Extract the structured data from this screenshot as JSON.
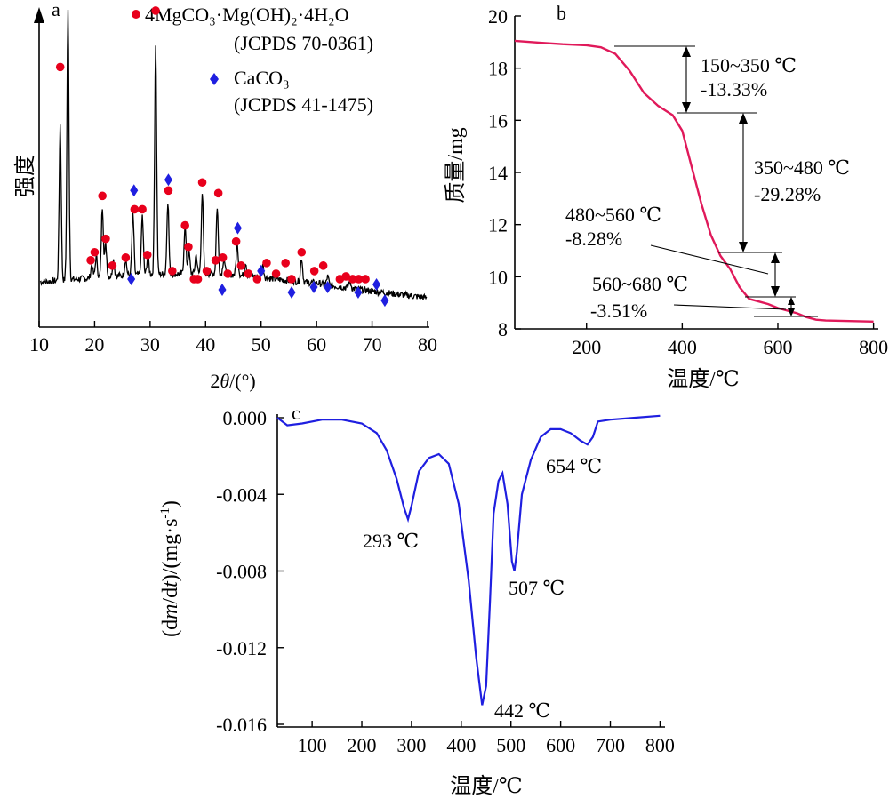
{
  "chart_data": [
    {
      "panel": "a",
      "type": "line",
      "xlabel_prefix": "2",
      "xlabel_var": "θ",
      "xlabel_suffix": "/(°)",
      "ylabel": "强度",
      "xlim": [
        10,
        80
      ],
      "xticks": [
        10,
        20,
        30,
        40,
        50,
        60,
        70,
        80
      ],
      "legend": [
        {
          "marker": "circle",
          "color": "#e8001c",
          "line1": "4MgCO₃·Mg(OH)₂·4H₂O",
          "line2": "(JCPDS 70-0361)"
        },
        {
          "marker": "diamond",
          "color": "#1f1fe0",
          "line1": "CaCO₃",
          "line2": "(JCPDS 41-1475)"
        }
      ],
      "peaks": [
        {
          "x": 13.8,
          "h": 0.58
        },
        {
          "x": 15.2,
          "h": 1.0
        },
        {
          "x": 19.5,
          "h": 0.05
        },
        {
          "x": 20.3,
          "h": 0.08
        },
        {
          "x": 21.4,
          "h": 0.26
        },
        {
          "x": 22.0,
          "h": 0.12
        },
        {
          "x": 23.4,
          "h": 0.06
        },
        {
          "x": 25.6,
          "h": 0.06
        },
        {
          "x": 26.9,
          "h": 0.23
        },
        {
          "x": 28.6,
          "h": 0.22
        },
        {
          "x": 29.6,
          "h": 0.07
        },
        {
          "x": 31.0,
          "h": 0.86
        },
        {
          "x": 33.2,
          "h": 0.27
        },
        {
          "x": 36.3,
          "h": 0.18
        },
        {
          "x": 37.0,
          "h": 0.08
        },
        {
          "x": 38.3,
          "h": 0.07
        },
        {
          "x": 39.4,
          "h": 0.3
        },
        {
          "x": 42.1,
          "h": 0.25
        },
        {
          "x": 43.3,
          "h": 0.06
        },
        {
          "x": 45.7,
          "h": 0.12
        },
        {
          "x": 47.2,
          "h": 0.05
        },
        {
          "x": 50.3,
          "h": 0.05
        },
        {
          "x": 57.3,
          "h": 0.09
        },
        {
          "x": 62.0,
          "h": 0.03
        },
        {
          "x": 66.0,
          "h": 0.03
        }
      ],
      "markers_mg": [
        [
          13.8,
          0.79
        ],
        [
          15.2,
          1.2
        ],
        [
          19.3,
          0.07
        ],
        [
          20.0,
          0.1
        ],
        [
          21.4,
          0.31
        ],
        [
          22.0,
          0.15
        ],
        [
          23.2,
          0.05
        ],
        [
          25.6,
          0.08
        ],
        [
          27.2,
          0.26
        ],
        [
          28.6,
          0.26
        ],
        [
          29.5,
          0.09
        ],
        [
          31.0,
          1.0
        ],
        [
          33.3,
          0.33
        ],
        [
          34.0,
          0.03
        ],
        [
          36.3,
          0.2
        ],
        [
          36.9,
          0.12
        ],
        [
          37.9,
          0.0
        ],
        [
          38.6,
          0.0
        ],
        [
          39.4,
          0.36
        ],
        [
          40.2,
          0.03
        ],
        [
          41.8,
          0.07
        ],
        [
          42.3,
          0.32
        ],
        [
          43.1,
          0.08
        ],
        [
          44.0,
          0.02
        ],
        [
          45.5,
          0.14
        ],
        [
          46.4,
          0.05
        ],
        [
          47.7,
          0.02
        ],
        [
          49.3,
          0.0
        ],
        [
          51.0,
          0.06
        ],
        [
          52.7,
          0.02
        ],
        [
          54.4,
          0.06
        ],
        [
          55.5,
          0.0
        ],
        [
          57.3,
          0.1
        ],
        [
          59.6,
          0.03
        ],
        [
          61.2,
          0.05
        ],
        [
          64.2,
          0.0
        ],
        [
          65.3,
          0.01
        ],
        [
          66.5,
          0.0
        ],
        [
          67.6,
          0.0
        ],
        [
          68.8,
          0.0
        ]
      ],
      "markers_ca": [
        [
          27.1,
          0.33
        ],
        [
          33.3,
          0.37
        ],
        [
          45.8,
          0.19
        ],
        [
          26.6,
          0.0
        ],
        [
          43.0,
          -0.04
        ],
        [
          50.0,
          0.03
        ],
        [
          55.5,
          -0.05
        ],
        [
          59.5,
          -0.03
        ],
        [
          62.0,
          -0.03
        ],
        [
          67.5,
          -0.05
        ],
        [
          70.8,
          -0.02
        ],
        [
          72.3,
          -0.08
        ]
      ]
    },
    {
      "panel": "b",
      "type": "line",
      "xlabel": "温度/℃",
      "ylabel": "质量/mg",
      "xlim": [
        50,
        810
      ],
      "ylim": [
        8,
        20
      ],
      "xticks": [
        200,
        400,
        600,
        800
      ],
      "yticks": [
        8,
        10,
        12,
        14,
        16,
        18,
        20
      ],
      "series": [
        {
          "color": "#e0195a",
          "points": [
            [
              50,
              19.05
            ],
            [
              100,
              18.98
            ],
            [
              150,
              18.92
            ],
            [
              200,
              18.88
            ],
            [
              230,
              18.8
            ],
            [
              260,
              18.55
            ],
            [
              290,
              17.9
            ],
            [
              320,
              17.05
            ],
            [
              350,
              16.55
            ],
            [
              380,
              16.2
            ],
            [
              400,
              15.6
            ],
            [
              420,
              14.2
            ],
            [
              440,
              12.8
            ],
            [
              460,
              11.6
            ],
            [
              480,
              10.8
            ],
            [
              500,
              10.3
            ],
            [
              520,
              9.6
            ],
            [
              540,
              9.15
            ],
            [
              560,
              9.05
            ],
            [
              580,
              8.95
            ],
            [
              600,
              8.8
            ],
            [
              620,
              8.7
            ],
            [
              640,
              8.6
            ],
            [
              660,
              8.45
            ],
            [
              680,
              8.35
            ],
            [
              700,
              8.32
            ],
            [
              750,
              8.3
            ],
            [
              800,
              8.28
            ]
          ]
        }
      ],
      "annotations": [
        {
          "range": "150~350 ℃",
          "loss": "-13.33%"
        },
        {
          "range": "350~480 ℃",
          "loss": "-29.28%"
        },
        {
          "range": "480~560 ℃",
          "loss": "-8.28%"
        },
        {
          "range": "560~680 ℃",
          "loss": "-3.51%"
        }
      ]
    },
    {
      "panel": "c",
      "type": "line",
      "xlabel": "温度/℃",
      "ylabel_part1": "(d",
      "ylabel_m": "m",
      "ylabel_part2": "/d",
      "ylabel_t": "t",
      "ylabel_part3": ")/(mg·s",
      "ylabel_sup": "-1",
      "ylabel_part4": ")",
      "xlim": [
        30,
        810
      ],
      "ylim": [
        -0.016,
        0.0003
      ],
      "xticks": [
        100,
        200,
        300,
        400,
        500,
        600,
        700,
        800
      ],
      "yticks": [
        0.0,
        -0.004,
        -0.008,
        -0.012,
        -0.016
      ],
      "ytick_labels": [
        "0.000",
        "-0.004",
        "-0.008",
        "-0.012",
        "-0.016"
      ],
      "series": [
        {
          "color": "#1f1fe0",
          "points": [
            [
              30,
              0.0
            ],
            [
              50,
              -0.0004
            ],
            [
              80,
              -0.0003
            ],
            [
              120,
              -0.0001
            ],
            [
              160,
              -0.0001
            ],
            [
              200,
              -0.0003
            ],
            [
              230,
              -0.0008
            ],
            [
              250,
              -0.0017
            ],
            [
              270,
              -0.0032
            ],
            [
              285,
              -0.0047
            ],
            [
              293,
              -0.0053
            ],
            [
              300,
              -0.0046
            ],
            [
              315,
              -0.0028
            ],
            [
              335,
              -0.0021
            ],
            [
              355,
              -0.0019
            ],
            [
              375,
              -0.0024
            ],
            [
              395,
              -0.0045
            ],
            [
              415,
              -0.0085
            ],
            [
              430,
              -0.0125
            ],
            [
              442,
              -0.015
            ],
            [
              450,
              -0.014
            ],
            [
              458,
              -0.0095
            ],
            [
              465,
              -0.005
            ],
            [
              475,
              -0.0033
            ],
            [
              483,
              -0.0029
            ],
            [
              493,
              -0.0045
            ],
            [
              502,
              -0.0075
            ],
            [
              507,
              -0.008
            ],
            [
              512,
              -0.007
            ],
            [
              522,
              -0.004
            ],
            [
              540,
              -0.0022
            ],
            [
              560,
              -0.001
            ],
            [
              580,
              -0.0006
            ],
            [
              600,
              -0.0006
            ],
            [
              620,
              -0.0008
            ],
            [
              640,
              -0.0012
            ],
            [
              654,
              -0.0014
            ],
            [
              665,
              -0.001
            ],
            [
              675,
              -0.0002
            ],
            [
              700,
              -0.0001
            ],
            [
              750,
              0.0
            ],
            [
              800,
              0.0001
            ]
          ]
        }
      ],
      "annotations": [
        "293 ℃",
        "442 ℃",
        "507 ℃",
        "654 ℃"
      ]
    }
  ]
}
